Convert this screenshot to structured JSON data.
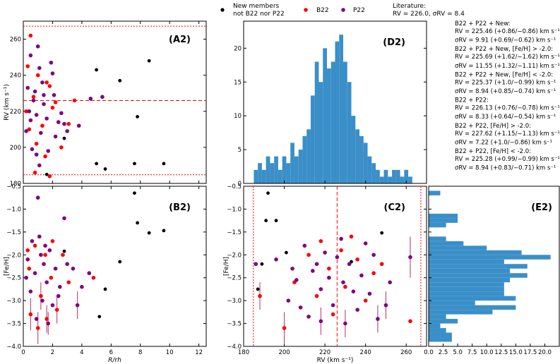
{
  "figure": {
    "legend": {
      "new": "New members",
      "new2": "not B22 nor P22",
      "b22": "B22",
      "p22": "P22",
      "lit1": "Literature:",
      "lit2": "RV = 226.0, σRV = 8.4"
    },
    "colors": {
      "new": "#000000",
      "b22": "#ff0000",
      "p22": "#800080",
      "hist": "#3a8fc8"
    },
    "stats": [
      "B22 + P22 + New:",
      "RV = 225.46 (+0.86/−0.86) km s⁻¹",
      "σRV = 9.91 (+0.69/−0.62) km s⁻¹",
      "B22 + P22 + New, [Fe/H] > -2.0:",
      "RV = 225.69 (+1.62/−1.62) km s⁻¹",
      "σRV = 11.55 (+1.32/−1.11) km s⁻¹",
      "B22 + P22 + New, [Fe/H] < -2.0:",
      "RV = 225.37 (+1.0/−0.99) km s⁻¹",
      "σRV = 8.94 (+0.85/−0.74) km s⁻¹",
      "B22 + P22:",
      "RV = 226.13 (+0.76/−0.78) km s⁻¹",
      "σRV = 8.33 (+0.64/−0.54) km s⁻¹",
      "B22 + P22, [Fe/H] > -2.0:",
      "RV = 227.62 (+1.15/−1.13) km s⁻¹",
      "σRV = 7.22 (+1.0/−0.86) km s⁻¹",
      "B22 + P22, [Fe/H] < -2.0:",
      "RV = 225.28 (+0.99/−0.99) km s⁻¹",
      "σRV = 8.94 (+0.83/−0.71) km s⁻¹"
    ]
  },
  "chart_data": [
    {
      "type": "scatter",
      "panel": "A2",
      "title": "(A2)",
      "xlabel": "R/r_h",
      "ylabel": "RV (km s⁻¹)",
      "xlim": [
        0,
        12.5
      ],
      "ylim": [
        180,
        270
      ],
      "xticks": [
        0,
        2,
        4,
        6,
        8,
        10,
        12
      ],
      "yticks": [
        180,
        200,
        220,
        240,
        260
      ],
      "hlines": [
        {
          "y": 226.0,
          "style": "dashed"
        },
        {
          "y": 184.8,
          "style": "dotted"
        },
        {
          "y": 267.2,
          "style": "dotted"
        }
      ],
      "series": [
        {
          "name": "New",
          "points": [
            [
              5.0,
              243
            ],
            [
              6.6,
              237
            ],
            [
              8.6,
              248
            ],
            [
              7.8,
              217
            ],
            [
              5.0,
              191
            ],
            [
              5.6,
              188
            ],
            [
              7.6,
              191
            ],
            [
              9.6,
              191
            ],
            [
              1.6,
              185
            ],
            [
              2.8,
              205
            ]
          ]
        },
        {
          "name": "B22",
          "points": [
            [
              0.5,
              262
            ],
            [
              0.3,
              245
            ],
            [
              1.8,
              234
            ],
            [
              0.7,
              228
            ],
            [
              2.0,
              222
            ],
            [
              0.4,
              210
            ],
            [
              1.3,
              212
            ],
            [
              1.5,
              195
            ],
            [
              2.6,
              200
            ],
            [
              0.8,
              186
            ],
            [
              3.1,
              213
            ],
            [
              0.2,
              220
            ],
            [
              1.0,
              240
            ],
            [
              1.6,
              236
            ],
            [
              2.2,
              225
            ],
            [
              0.9,
              202
            ],
            [
              1.8,
              184
            ],
            [
              3.5,
              226
            ]
          ]
        },
        {
          "name": "P22",
          "points": [
            [
              0.5,
              251
            ],
            [
              1.1,
              244
            ],
            [
              0.3,
              233
            ],
            [
              1.4,
              229
            ],
            [
              0.8,
              231
            ],
            [
              2.1,
              229
            ],
            [
              0.4,
              220
            ],
            [
              0.9,
              218
            ],
            [
              1.6,
              216
            ],
            [
              2.6,
              219
            ],
            [
              0.2,
              209
            ],
            [
              1.2,
              208
            ],
            [
              2.2,
              206
            ],
            [
              0.6,
              199
            ],
            [
              1.7,
              198
            ],
            [
              3.0,
              209
            ],
            [
              4.6,
              227
            ],
            [
              5.4,
              228
            ],
            [
              1.0,
              256
            ],
            [
              1.9,
              247
            ],
            [
              0.7,
              226
            ],
            [
              1.4,
              224
            ],
            [
              2.4,
              214
            ],
            [
              1.1,
              190
            ],
            [
              2.8,
              213
            ],
            [
              3.8,
              212
            ],
            [
              0.5,
              215
            ],
            [
              1.3,
              236
            ],
            [
              2.0,
              241
            ],
            [
              0.9,
              196
            ]
          ]
        }
      ],
      "xticklabels": [
        "0",
        "2",
        "4",
        "6",
        "8",
        "10",
        "12"
      ],
      "yticklabels": [
        "200",
        "220",
        "240",
        "260"
      ],
      "corner_label": "180"
    },
    {
      "type": "scatter",
      "panel": "B2",
      "title": "(B2)",
      "xlabel": "R/rh",
      "ylabel": "[Fe/H]",
      "xlim": [
        0,
        12.5
      ],
      "ylim": [
        -4.0,
        -0.5
      ],
      "xticks": [
        0,
        2,
        4,
        6,
        8,
        10,
        12
      ],
      "yticks": [
        -4.0,
        -3.5,
        -3.0,
        -2.5,
        -2.0,
        -1.5,
        -1.0,
        -0.5
      ],
      "series": [
        {
          "name": "New",
          "points": [
            [
              7.6,
              -0.65
            ],
            [
              7.8,
              -1.3
            ],
            [
              8.6,
              -1.52
            ],
            [
              9.6,
              -1.47
            ],
            [
              6.6,
              -2.15
            ],
            [
              5.6,
              -2.75
            ],
            [
              5.2,
              -3.35
            ],
            [
              2.8,
              -1.92
            ]
          ]
        },
        {
          "name": "B22",
          "points": [
            [
              0.8,
              -1.8
            ],
            [
              1.5,
              -2.0
            ],
            [
              0.4,
              -2.3
            ],
            [
              1.9,
              -2.5
            ],
            [
              2.7,
              -2.0
            ],
            [
              1.2,
              -2.9
            ],
            [
              0.5,
              -3.3
            ],
            [
              2.3,
              -3.2
            ],
            [
              3.1,
              -2.6
            ],
            [
              1.0,
              -3.6
            ],
            [
              4.8,
              -2.5
            ],
            [
              0.3,
              -1.9
            ],
            [
              2.0,
              -1.7
            ],
            [
              1.6,
              -3.4
            ]
          ]
        },
        {
          "name": "P22",
          "points": [
            [
              0.6,
              -1.7
            ],
            [
              1.1,
              -1.6
            ],
            [
              1.8,
              -1.9
            ],
            [
              0.3,
              -2.1
            ],
            [
              1.4,
              -2.2
            ],
            [
              2.2,
              -2.3
            ],
            [
              0.8,
              -2.4
            ],
            [
              1.6,
              -2.6
            ],
            [
              2.5,
              -2.7
            ],
            [
              0.5,
              -2.8
            ],
            [
              1.3,
              -3.0
            ],
            [
              2.0,
              -3.1
            ],
            [
              3.4,
              -2.3
            ],
            [
              3.7,
              -3.1
            ],
            [
              1.7,
              -3.5
            ],
            [
              0.9,
              -3.4
            ],
            [
              2.8,
              -1.2
            ],
            [
              4.5,
              -2.4
            ],
            [
              1.0,
              -0.75
            ],
            [
              2.4,
              -2.9
            ],
            [
              0.2,
              -2.5
            ],
            [
              1.5,
              -1.8
            ],
            [
              3.0,
              -2.2
            ],
            [
              4.0,
              -2.7
            ],
            [
              1.2,
              -2.0
            ]
          ]
        }
      ],
      "xticklabels": [
        "0",
        "2",
        "4",
        "6",
        "8",
        "10",
        "12"
      ],
      "yticklabels": [
        "−1.0",
        "−1.5",
        "−2.0",
        "−2.5",
        "−3.0",
        "−3.5",
        "−4.0"
      ],
      "corner_label": "−0.5"
    },
    {
      "type": "bar",
      "panel": "D2",
      "title": "(D2)",
      "xlim": [
        180,
        270
      ],
      "ylim": [
        0,
        24
      ],
      "yticks": [
        0,
        5,
        10,
        15,
        20
      ],
      "bin_start": 185,
      "bin_width": 2,
      "values": [
        2,
        3,
        2,
        4,
        3,
        4,
        2,
        4,
        3,
        6,
        4,
        5,
        7,
        8,
        13,
        18,
        15,
        20,
        17,
        18,
        21,
        22,
        18,
        15,
        10,
        8,
        7,
        6,
        4,
        3,
        2,
        1,
        2,
        1,
        2,
        2,
        1,
        2,
        1
      ],
      "yticklabels": [
        "0",
        "5",
        "10",
        "15",
        "20"
      ]
    },
    {
      "type": "scatter",
      "panel": "C2",
      "title": "(C2)",
      "xlabel": "RV (km s⁻¹)",
      "ylabel": "[Fe/H]",
      "xlim": [
        180,
        270
      ],
      "ylim": [
        -4.0,
        -0.5
      ],
      "xticks": [
        180,
        200,
        220,
        240,
        260
      ],
      "yticks": [
        -4.0,
        -3.5,
        -3.0,
        -2.5,
        -2.0,
        -1.5,
        -1.0,
        -0.5
      ],
      "vlines": [
        {
          "x": 226.0,
          "style": "dashed"
        },
        {
          "x": 184.8,
          "style": "dotted"
        },
        {
          "x": 267.2,
          "style": "dotted"
        }
      ],
      "series": [
        {
          "name": "New",
          "points": [
            [
              192,
              -0.65
            ],
            [
              191,
              -1.25
            ],
            [
              196,
              -1.25
            ],
            [
              189,
              -2.2
            ],
            [
              248,
              -1.52
            ],
            [
              201,
              -1.95
            ],
            [
              233,
              -2.15
            ],
            [
              187,
              -2.75
            ]
          ]
        },
        {
          "name": "B22",
          "points": [
            [
              218,
              -1.7
            ],
            [
              228,
              -1.9
            ],
            [
              212,
              -2.0
            ],
            [
              236,
              -2.1
            ],
            [
              222,
              -2.3
            ],
            [
              244,
              -2.4
            ],
            [
              205,
              -2.6
            ],
            [
              230,
              -2.7
            ],
            [
              216,
              -2.9
            ],
            [
              240,
              -3.0
            ],
            [
              200,
              -3.6
            ],
            [
              262,
              -3.45
            ],
            [
              224,
              -3.3
            ],
            [
              248,
              -2.2
            ],
            [
              188,
              -2.9
            ],
            [
              233,
              -1.6
            ]
          ]
        },
        {
          "name": "P22",
          "points": [
            [
              210,
              -1.8
            ],
            [
              220,
              -1.95
            ],
            [
              226,
              -2.05
            ],
            [
              232,
              -2.2
            ],
            [
              214,
              -2.35
            ],
            [
              238,
              -2.45
            ],
            [
              206,
              -2.55
            ],
            [
              229,
              -2.6
            ],
            [
              218,
              -2.75
            ],
            [
              242,
              -2.85
            ],
            [
              202,
              -3.0
            ],
            [
              224,
              -3.1
            ],
            [
              236,
              -3.2
            ],
            [
              212,
              -3.35
            ],
            [
              246,
              -3.4
            ],
            [
              196,
              -2.1
            ],
            [
              252,
              -2.6
            ],
            [
              262,
              -2.05
            ],
            [
              228,
              -1.65
            ],
            [
              216,
              -2.2
            ],
            [
              234,
              -2.8
            ],
            [
              208,
              -3.15
            ],
            [
              240,
              -1.75
            ],
            [
              222,
              -2.5
            ],
            [
              186,
              -2.2
            ],
            [
              250,
              -3.1
            ],
            [
              230,
              -3.5
            ],
            [
              218,
              -3.45
            ],
            [
              204,
              -2.3
            ],
            [
              244,
              -2.0
            ]
          ]
        }
      ],
      "xticklabels": [
        "180",
        "200",
        "220",
        "240",
        "260"
      ],
      "yticklabels": [
        "−1.0",
        "−1.5",
        "−2.0",
        "−2.5",
        "−3.0",
        "−3.5",
        "−4.0"
      ],
      "corner_label": "−0.5"
    },
    {
      "type": "bar",
      "orientation": "horizontal",
      "panel": "E2",
      "title": "(E2)",
      "xlim": [
        0,
        22.5
      ],
      "ylim": [
        -4.0,
        -0.5
      ],
      "xticks": [
        0,
        2.5,
        5.0,
        7.5,
        10.0,
        12.5,
        15.0,
        17.5,
        20.0
      ],
      "bin_start": -4.0,
      "bin_width": 0.1,
      "values": [
        0,
        4,
        4,
        3,
        2,
        5,
        3,
        11,
        15,
        8,
        15,
        13,
        13,
        13,
        14,
        17,
        14,
        17,
        13,
        21,
        16,
        10,
        6,
        3,
        0,
        0,
        3,
        5,
        5,
        0,
        0,
        0,
        0,
        2,
        0
      ],
      "xticklabels": [
        "0.0",
        "2.5",
        "5.0",
        "7.5",
        "10.0",
        "12.5",
        "15.0",
        "17.5",
        "20.0"
      ]
    }
  ]
}
